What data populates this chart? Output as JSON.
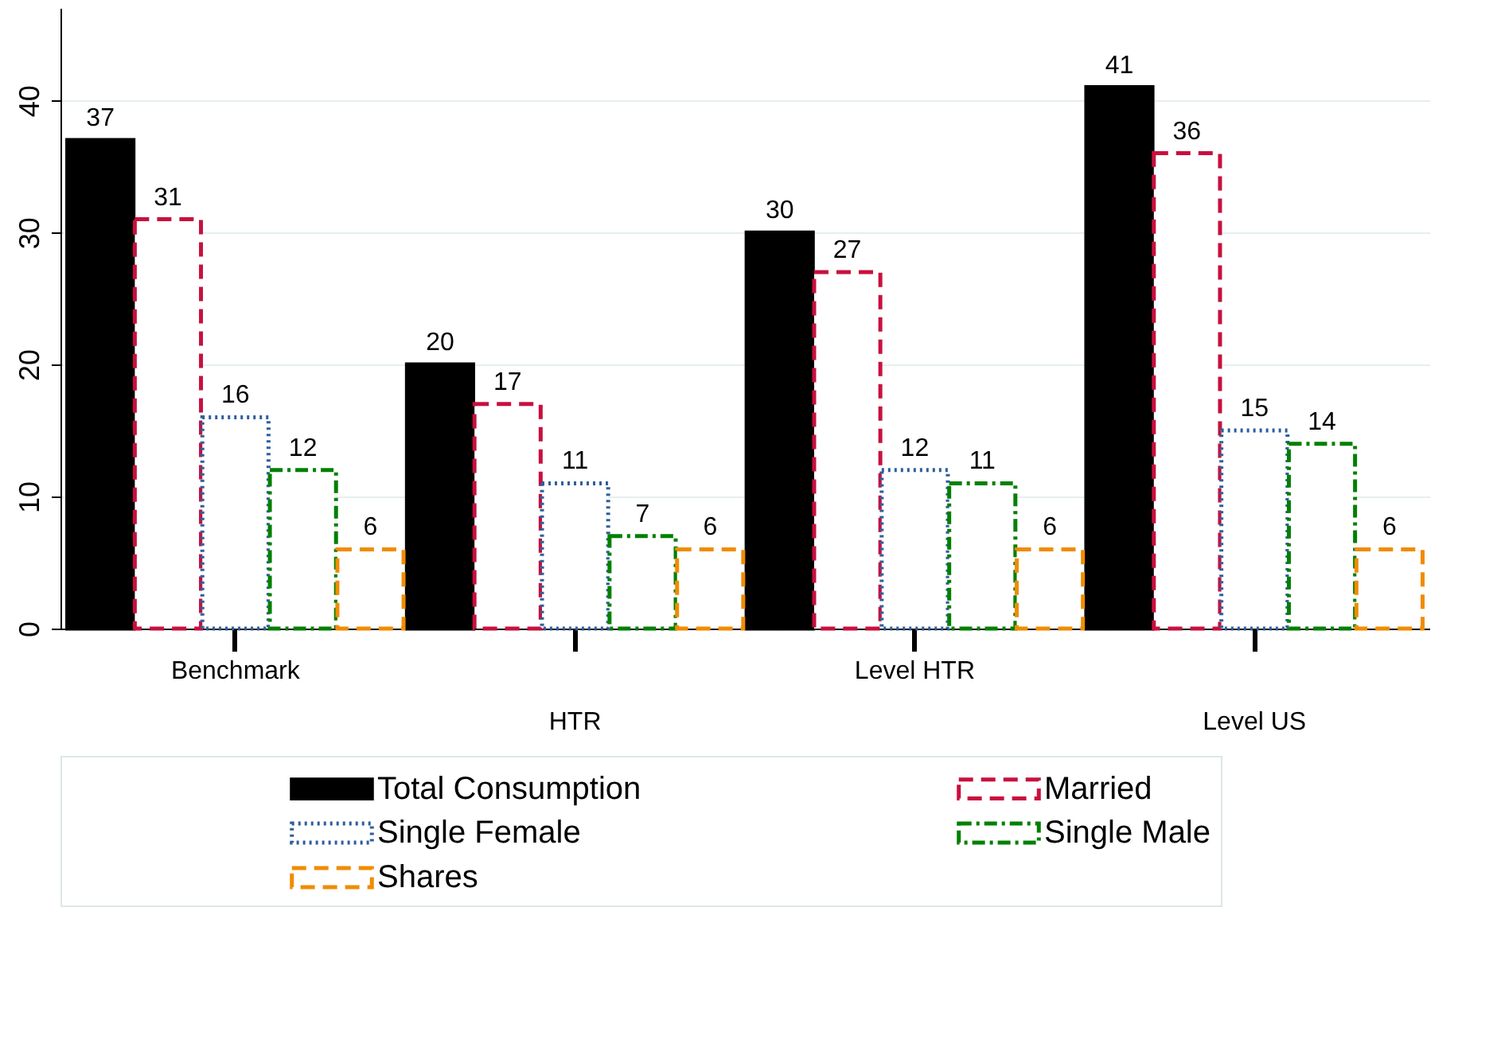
{
  "chart_data": {
    "type": "bar",
    "categories": [
      "Benchmark",
      "HTR",
      "Level HTR",
      "Level US"
    ],
    "series": [
      {
        "name": "Total Consumption",
        "color": "#000000",
        "line_style": "solid",
        "values": [
          37,
          20,
          30,
          41
        ]
      },
      {
        "name": "Married",
        "color": "#c8103e",
        "line_style": "dashed",
        "values": [
          31,
          17,
          27,
          36
        ]
      },
      {
        "name": "Single Female",
        "color": "#2f5f9a",
        "line_style": "dotted",
        "values": [
          16,
          11,
          12,
          15
        ]
      },
      {
        "name": "Single Male",
        "color": "#008000",
        "line_style": "dashed",
        "values": [
          12,
          7,
          11,
          14
        ]
      },
      {
        "name": "Shares",
        "color": "#f08c00",
        "line_style": "dashed",
        "values": [
          6,
          6,
          6,
          6
        ]
      }
    ],
    "ylim": [
      0,
      47
    ],
    "yticks": [
      0,
      10,
      20,
      30,
      40
    ],
    "grid": "y",
    "legend": "bottom",
    "data_labels": true
  }
}
